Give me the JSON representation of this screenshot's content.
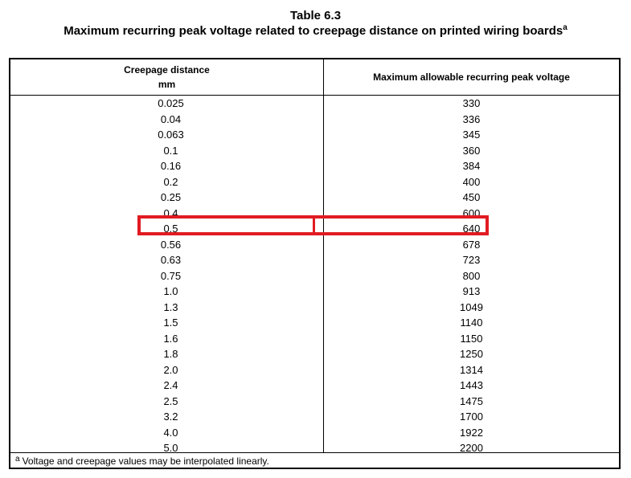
{
  "table": {
    "title": "Table 6.3",
    "caption": "Maximum recurring peak voltage related to creepage distance on printed wiring boards",
    "caption_note_marker": "a",
    "headers": {
      "distance_line1": "Creepage distance",
      "distance_line2": "mm",
      "voltage": "Maximum allowable recurring peak voltage"
    },
    "rows": [
      {
        "distance": "0.025",
        "voltage": "330"
      },
      {
        "distance": "0.04",
        "voltage": "336"
      },
      {
        "distance": "0.063",
        "voltage": "345"
      },
      {
        "distance": "0.1",
        "voltage": "360"
      },
      {
        "distance": "0.16",
        "voltage": "384"
      },
      {
        "distance": "0.2",
        "voltage": "400"
      },
      {
        "distance": "0.25",
        "voltage": "450"
      },
      {
        "distance": "0.4",
        "voltage": "600"
      },
      {
        "distance": "0.5",
        "voltage": "640"
      },
      {
        "distance": "0.56",
        "voltage": "678"
      },
      {
        "distance": "0.63",
        "voltage": "723"
      },
      {
        "distance": "0.75",
        "voltage": "800"
      },
      {
        "distance": "1.0",
        "voltage": "913"
      },
      {
        "distance": "1.3",
        "voltage": "1049"
      },
      {
        "distance": "1.5",
        "voltage": "1140"
      },
      {
        "distance": "1.6",
        "voltage": "1150"
      },
      {
        "distance": "1.8",
        "voltage": "1250"
      },
      {
        "distance": "2.0",
        "voltage": "1314"
      },
      {
        "distance": "2.4",
        "voltage": "1443"
      },
      {
        "distance": "2.5",
        "voltage": "1475"
      },
      {
        "distance": "3.2",
        "voltage": "1700"
      },
      {
        "distance": "4.0",
        "voltage": "1922"
      },
      {
        "distance": "5.0",
        "voltage": "2200"
      }
    ],
    "footnote_marker": "a",
    "footnote": "Voltage and creepage values may be interpolated linearly.",
    "highlighted_row_index": 8,
    "highlight_color": "#e11b22"
  }
}
